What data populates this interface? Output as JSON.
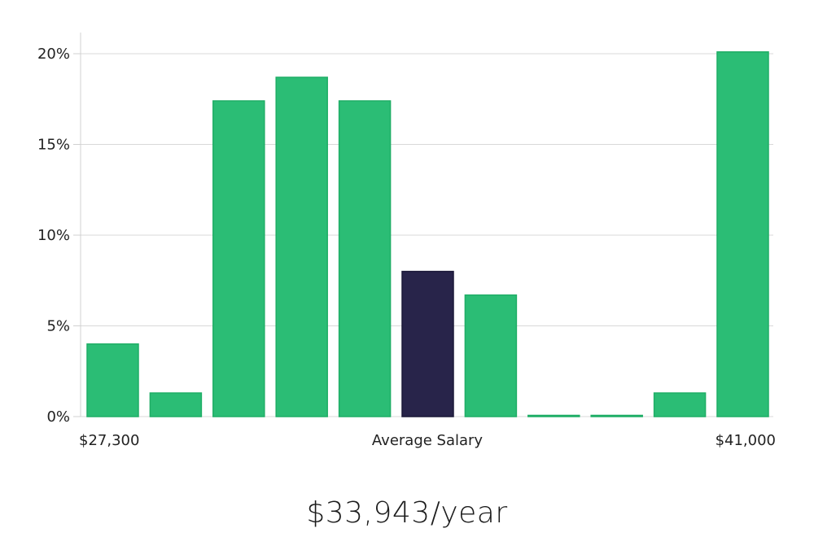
{
  "chart_data": {
    "type": "bar",
    "title": "",
    "xlabel": "Average Salary",
    "ylabel": "",
    "ylim": [
      0,
      21
    ],
    "yticks": [
      0,
      5,
      10,
      15,
      20
    ],
    "ytick_labels": [
      "0%",
      "5%",
      "10%",
      "15%",
      "20%"
    ],
    "x_range_labels": {
      "min": "$27,300",
      "max": "$41,000"
    },
    "values": [
      4.0,
      1.3,
      17.4,
      18.7,
      17.4,
      8.0,
      6.7,
      0.0,
      0.0,
      1.3,
      20.1
    ],
    "highlight_index": 5,
    "colors": {
      "bar": "#2bbd75",
      "bar_edge": "#1fae66",
      "highlight": "#28244a",
      "highlight_edge": "#1b1838"
    }
  },
  "summary": {
    "salary_text": "$33,943/year"
  }
}
